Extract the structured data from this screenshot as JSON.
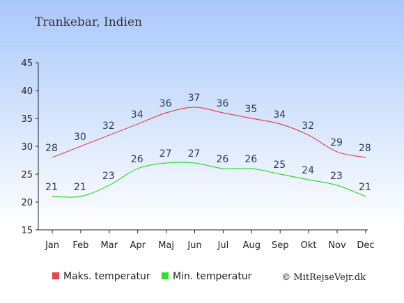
{
  "chart_data": {
    "type": "line",
    "title": "Trankebar, Indien",
    "categories": [
      "Jan",
      "Feb",
      "Mar",
      "Apr",
      "Maj",
      "Jun",
      "Jul",
      "Aug",
      "Sep",
      "Okt",
      "Nov",
      "Dec"
    ],
    "series": [
      {
        "name": "Maks. temperatur",
        "color": "#e8474a",
        "values": [
          28,
          30,
          32,
          34,
          36,
          37,
          36,
          35,
          34,
          32,
          29,
          28
        ]
      },
      {
        "name": "Min. temperatur",
        "color": "#33dd33",
        "values": [
          21,
          21,
          23,
          26,
          27,
          27,
          26,
          26,
          25,
          24,
          23,
          21
        ]
      }
    ],
    "y_ticks": [
      15,
      20,
      25,
      30,
      35,
      40,
      45
    ],
    "ylim": [
      15,
      45
    ],
    "xlabel": "",
    "ylabel": "",
    "grid": false,
    "legend_position": "bottom",
    "background": {
      "top": "#a9c8fb",
      "bottom": "#ffffff"
    },
    "label_color": "#2a3a5a"
  },
  "credit": "© MitRejseVejr.dk"
}
